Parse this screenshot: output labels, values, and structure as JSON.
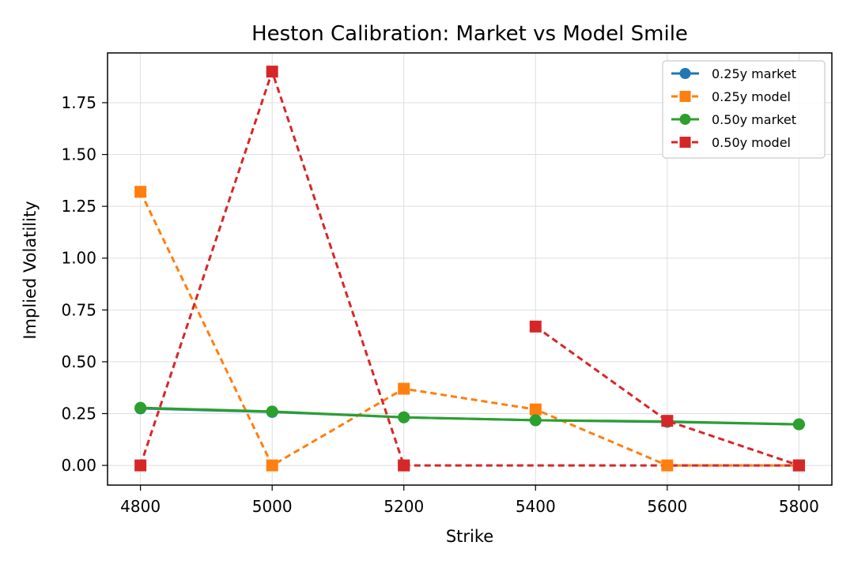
{
  "chart_data": {
    "type": "line",
    "title": "Heston Calibration: Market vs Model Smile",
    "xlabel": "Strike",
    "ylabel": "Implied Volatility",
    "xlim": [
      4750,
      5850
    ],
    "ylim": [
      -0.095,
      1.99
    ],
    "xticks": [
      4800,
      5000,
      5200,
      5400,
      5600,
      5800
    ],
    "xtick_labels": [
      "4800",
      "5000",
      "5200",
      "5400",
      "5600",
      "5800"
    ],
    "yticks": [
      0,
      0.25,
      0.5,
      0.75,
      1.0,
      1.25,
      1.5,
      1.75
    ],
    "ytick_labels": [
      "0.00",
      "0.25",
      "0.50",
      "0.75",
      "1.00",
      "1.25",
      "1.50",
      "1.75"
    ],
    "grid": true,
    "legend_position": "top-right",
    "series": [
      {
        "name": "0.25y market",
        "color": "#1f77b4",
        "line_style": "solid",
        "marker": "circle",
        "points": [
          [
            4800,
            0.275
          ],
          [
            5000,
            0.258
          ],
          [
            5200,
            0.232
          ],
          [
            5400,
            0.218
          ],
          [
            5600,
            0.21
          ],
          [
            5800,
            0.198
          ]
        ]
      },
      {
        "name": "0.25y model",
        "color": "#ff7f0e",
        "line_style": "dashed",
        "marker": "square",
        "points": [
          [
            4800,
            1.32
          ],
          [
            5000,
            0.0
          ],
          [
            5200,
            0.37
          ],
          [
            5400,
            0.27
          ],
          [
            5600,
            0.0
          ],
          [
            5800,
            0.0
          ]
        ]
      },
      {
        "name": "0.50y market",
        "color": "#2ca02c",
        "line_style": "solid",
        "marker": "circle",
        "points": [
          [
            4800,
            0.278
          ],
          [
            5000,
            0.26
          ],
          [
            5200,
            0.232
          ],
          [
            5400,
            0.218
          ],
          [
            5600,
            0.212
          ],
          [
            5800,
            0.198
          ]
        ]
      },
      {
        "name": "0.50y model",
        "color": "#d62728",
        "line_style": "dashed",
        "marker": "square",
        "segments": [
          [
            [
              4800,
              0.0
            ],
            [
              5000,
              1.9
            ],
            [
              5200,
              0.0
            ]
          ],
          [
            [
              5400,
              0.67
            ],
            [
              5600,
              0.215
            ],
            [
              5800,
              0.0
            ]
          ]
        ],
        "extra_points": [
          [
            5200,
            0.0
          ],
          [
            5800,
            0.0
          ]
        ],
        "note_line": [
          [
            5200,
            0.0
          ],
          [
            5800,
            0.0
          ]
        ]
      }
    ]
  }
}
